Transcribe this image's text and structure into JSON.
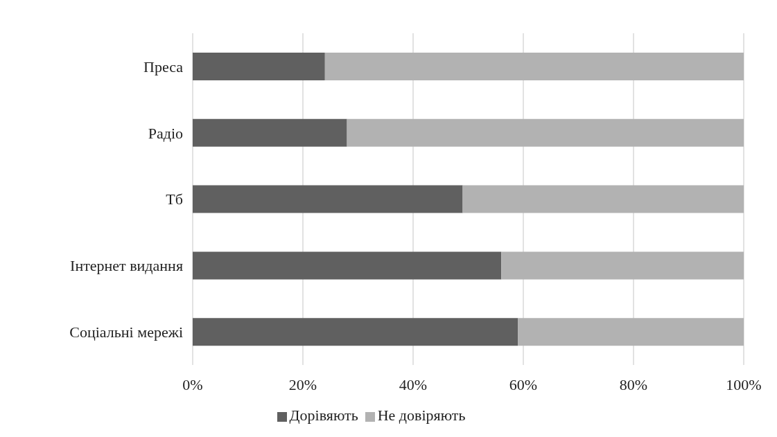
{
  "chart_data": {
    "type": "bar",
    "orientation": "horizontal",
    "stacked": true,
    "categories": [
      "Преса",
      "Радіо",
      "Тб",
      "Інтернет видання",
      "Соціальні мережі"
    ],
    "series": [
      {
        "name": "Дорівяють",
        "color": "#606060",
        "values": [
          24,
          28,
          49,
          56,
          59
        ]
      },
      {
        "name": "Не довіряють",
        "color": "#b2b2b2",
        "values": [
          76,
          72,
          51,
          44,
          41
        ]
      }
    ],
    "xlim": [
      0,
      100
    ],
    "xticks": [
      {
        "value": 0,
        "label": "0%"
      },
      {
        "value": 20,
        "label": "20%"
      },
      {
        "value": 40,
        "label": "40%"
      },
      {
        "value": 60,
        "label": "60%"
      },
      {
        "value": 80,
        "label": "80%"
      },
      {
        "value": 100,
        "label": "100%"
      }
    ],
    "grid": "x",
    "legend": "bottom"
  }
}
